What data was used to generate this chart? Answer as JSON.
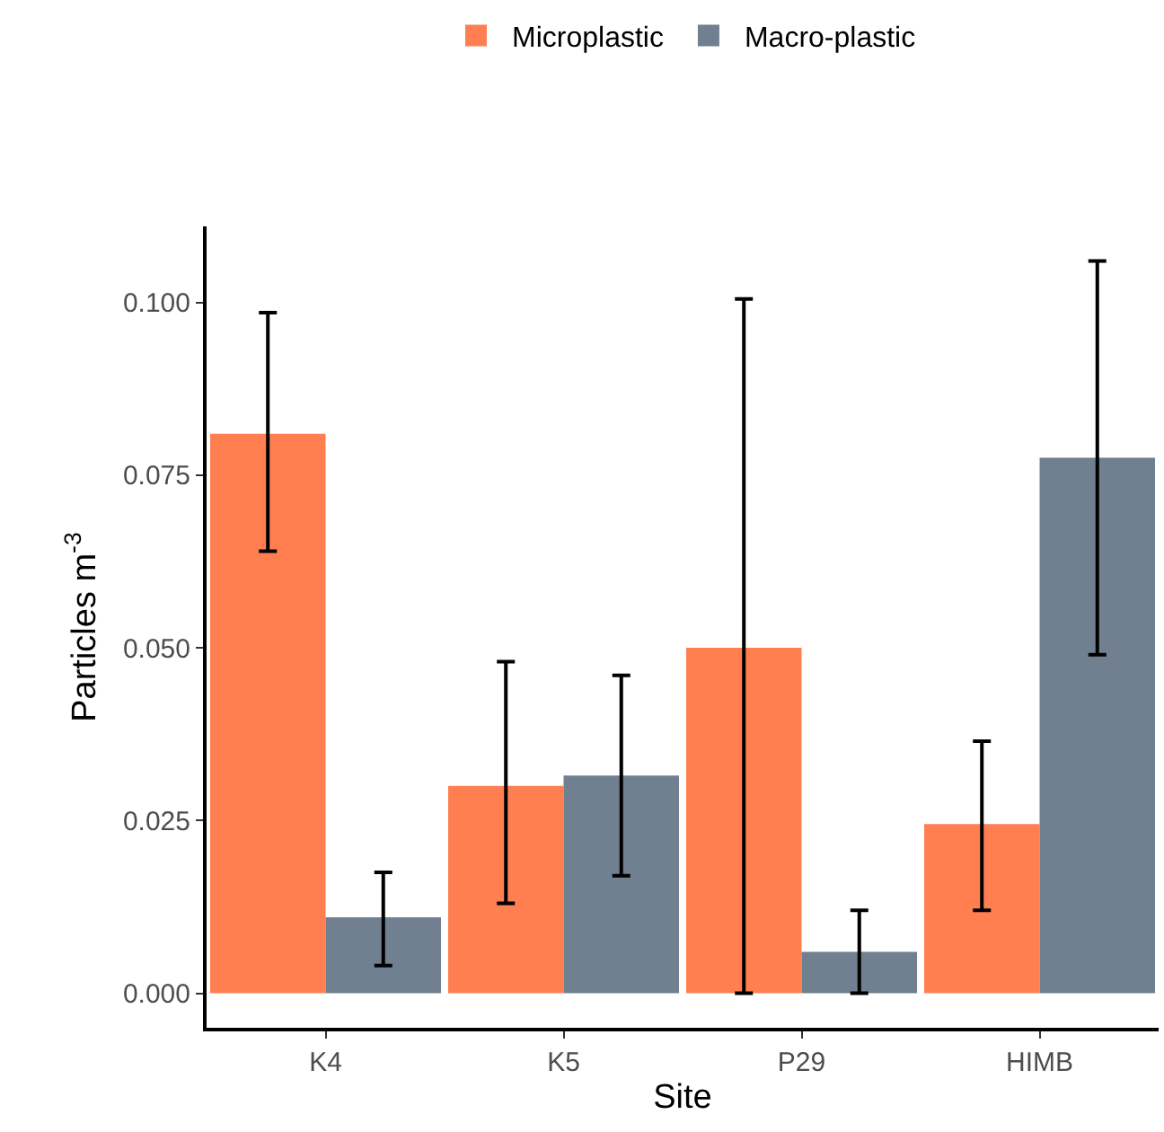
{
  "chart_data": {
    "type": "bar",
    "xlabel": "Site",
    "ylabel": "Particles m$^{-3}$",
    "categories": [
      "K4",
      "K5",
      "P29",
      "HIMB"
    ],
    "series": [
      {
        "name": "Microplastic",
        "color": "#ff7f50",
        "values": [
          0.081,
          0.03,
          0.05,
          0.0245
        ],
        "errors": [
          [
            0.064,
            0.0985
          ],
          [
            0.013,
            0.048
          ],
          [
            0,
            0.1005
          ],
          [
            0.012,
            0.0365
          ]
        ]
      },
      {
        "name": "Macro-plastic",
        "color": "#708090",
        "values": [
          0.011,
          0.0315,
          0.006,
          0.0775
        ],
        "errors": [
          [
            0.004,
            0.0175
          ],
          [
            0.017,
            0.046
          ],
          [
            0,
            0.012
          ],
          [
            0.049,
            0.106
          ]
        ]
      }
    ],
    "ylim": [
      -0.005,
      0.111
    ],
    "yticks": [
      {
        "value": 0,
        "label": "0.000"
      },
      {
        "value": 0.025,
        "label": "0.025"
      },
      {
        "value": 0.05,
        "label": "0.050"
      },
      {
        "value": 0.075,
        "label": "0.075"
      },
      {
        "value": 0.1,
        "label": "0.100"
      }
    ],
    "grid": false,
    "legend": "top"
  }
}
